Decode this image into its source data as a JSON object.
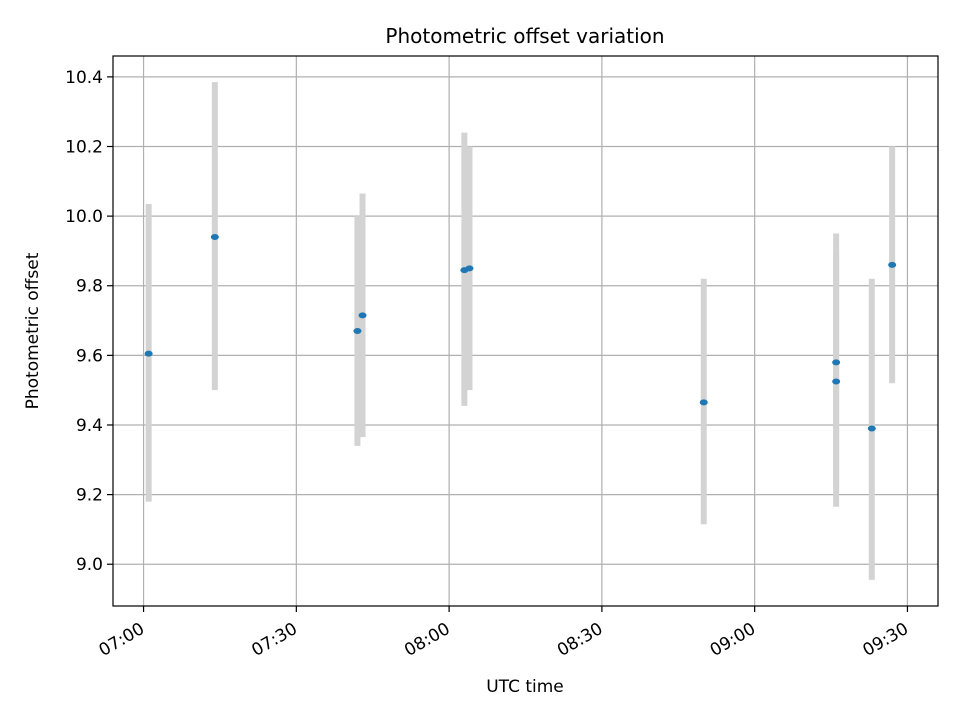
{
  "chart_data": {
    "type": "scatter",
    "title": "Photometric offset variation",
    "xlabel": "UTC time",
    "ylabel": "Photometric offset",
    "xlim": [
      "06:54",
      "09:36"
    ],
    "ylim": [
      8.88,
      10.46
    ],
    "x_ticks": [
      "07:00",
      "07:30",
      "08:00",
      "08:30",
      "09:00",
      "09:30"
    ],
    "y_ticks": [
      9.0,
      9.2,
      9.4,
      9.6,
      9.8,
      10.0,
      10.2,
      10.4
    ],
    "grid": true,
    "colors": {
      "point": "#1f77b4",
      "errorbar": "#d3d3d3",
      "grid": "#b0b0b0"
    },
    "points": [
      {
        "time": "07:01",
        "y": 9.605,
        "low": 9.18,
        "high": 10.035
      },
      {
        "time": "07:14",
        "y": 9.94,
        "low": 9.5,
        "high": 10.385
      },
      {
        "time": "07:42",
        "y": 9.67,
        "low": 9.34,
        "high": 10.0
      },
      {
        "time": "07:43",
        "y": 9.715,
        "low": 9.365,
        "high": 10.065
      },
      {
        "time": "08:03",
        "y": 9.845,
        "low": 9.455,
        "high": 10.24
      },
      {
        "time": "08:04",
        "y": 9.85,
        "low": 9.5,
        "high": 10.2
      },
      {
        "time": "08:50",
        "y": 9.465,
        "low": 9.115,
        "high": 9.82
      },
      {
        "time": "09:16",
        "y": 9.525,
        "low": 9.165,
        "high": 9.89
      },
      {
        "time": "09:16",
        "y": 9.58,
        "low": 9.22,
        "high": 9.95
      },
      {
        "time": "09:23",
        "y": 9.39,
        "low": 8.955,
        "high": 9.82
      },
      {
        "time": "09:27",
        "y": 9.86,
        "low": 9.52,
        "high": 10.2
      }
    ]
  }
}
